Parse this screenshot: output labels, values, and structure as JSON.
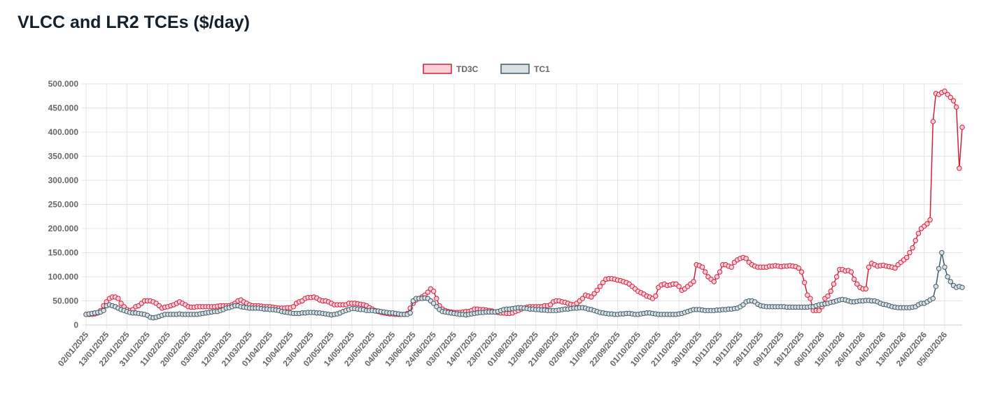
{
  "chart_data": {
    "type": "line",
    "title": "VLCC and LR2 TCEs ($/day)",
    "categories": [
      "02/01/2025",
      null,
      null,
      null,
      null,
      null,
      null,
      "13/01/2025",
      null,
      null,
      null,
      null,
      null,
      null,
      "22/01/2025",
      null,
      null,
      null,
      null,
      null,
      null,
      "31/01/2025",
      null,
      null,
      null,
      null,
      null,
      null,
      "11/02/2025",
      null,
      null,
      null,
      null,
      null,
      null,
      "20/02/2025",
      null,
      null,
      null,
      null,
      null,
      null,
      "03/03/2025",
      null,
      null,
      null,
      null,
      null,
      null,
      "12/03/2025",
      null,
      null,
      null,
      null,
      null,
      null,
      "21/03/2025",
      null,
      null,
      null,
      null,
      null,
      null,
      "01/04/2025",
      null,
      null,
      null,
      null,
      null,
      null,
      "10/04/2025",
      null,
      null,
      null,
      null,
      null,
      null,
      "23/04/2025",
      null,
      null,
      null,
      null,
      null,
      null,
      "02/05/2025",
      null,
      null,
      null,
      null,
      null,
      null,
      "14/05/2025",
      null,
      null,
      null,
      null,
      null,
      null,
      "23/05/2025",
      null,
      null,
      null,
      null,
      null,
      null,
      "04/06/2025",
      null,
      null,
      null,
      null,
      null,
      null,
      "13/06/2025",
      null,
      null,
      null,
      null,
      null,
      null,
      "24/06/2025",
      null,
      null,
      null,
      null,
      null,
      null,
      "03/07/2025",
      null,
      null,
      null,
      null,
      null,
      null,
      "14/07/2025",
      null,
      null,
      null,
      null,
      null,
      null,
      "23/07/2025",
      null,
      null,
      null,
      null,
      null,
      null,
      "01/08/2025",
      null,
      null,
      null,
      null,
      null,
      null,
      "12/08/2025",
      null,
      null,
      null,
      null,
      null,
      null,
      "21/08/2025",
      null,
      null,
      null,
      null,
      null,
      null,
      "02/09/2025",
      null,
      null,
      null,
      null,
      null,
      null,
      "11/09/2025",
      null,
      null,
      null,
      null,
      null,
      null,
      "22/09/2025",
      null,
      null,
      null,
      null,
      null,
      null,
      "01/10/2025",
      null,
      null,
      null,
      null,
      null,
      null,
      "10/10/2025",
      null,
      null,
      null,
      null,
      null,
      null,
      "21/10/2025",
      null,
      null,
      null,
      null,
      null,
      null,
      "30/10/2025",
      null,
      null,
      null,
      null,
      null,
      null,
      "10/11/2025",
      null,
      null,
      null,
      null,
      null,
      null,
      "19/11/2025",
      null,
      null,
      null,
      null,
      null,
      null,
      "28/11/2025",
      null,
      null,
      null,
      null,
      null,
      null,
      "09/12/2025",
      null,
      null,
      null,
      null,
      null,
      null,
      "18/12/2025",
      null,
      null,
      null,
      null,
      null,
      null,
      "06/01/2026",
      null,
      null,
      null,
      null,
      null,
      null,
      "15/01/2026",
      null,
      null,
      null,
      null,
      null,
      null,
      "26/01/2026",
      null,
      null,
      null,
      null,
      null,
      null,
      "04/02/2026",
      null,
      null,
      null,
      null,
      null,
      null,
      "13/02/2026",
      null,
      null,
      null,
      null,
      null,
      null,
      "24/02/2026",
      null,
      null,
      null,
      null,
      null,
      null,
      "05/03/2026",
      null,
      null,
      null,
      null,
      null,
      null
    ],
    "series": [
      {
        "name": "TD3C",
        "color": "#d21f3c",
        "fill_color": "#fbd0d8",
        "values": [
          22000,
          22000,
          22000,
          23000,
          25000,
          30000,
          40000,
          48000,
          55000,
          58000,
          58000,
          55000,
          45000,
          38000,
          32000,
          30000,
          32000,
          38000,
          40000,
          45000,
          50000,
          50000,
          50000,
          48000,
          45000,
          40000,
          35000,
          37000,
          38000,
          40000,
          42000,
          45000,
          48000,
          45000,
          42000,
          38000,
          37000,
          37000,
          38000,
          38000,
          38000,
          38000,
          38000,
          38000,
          38000,
          39000,
          40000,
          40000,
          40000,
          40000,
          42000,
          45000,
          50000,
          52000,
          48000,
          45000,
          42000,
          40000,
          40000,
          40000,
          39000,
          38000,
          38000,
          38000,
          37000,
          36000,
          35000,
          35000,
          35000,
          36000,
          36000,
          38000,
          45000,
          48000,
          50000,
          55000,
          57000,
          57000,
          58000,
          56000,
          52000,
          50000,
          50000,
          48000,
          45000,
          42000,
          42000,
          42000,
          42000,
          42000,
          45000,
          45000,
          45000,
          44000,
          43000,
          42000,
          40000,
          36000,
          33000,
          30000,
          28000,
          26000,
          25000,
          24000,
          23000,
          23000,
          22000,
          22000,
          22000,
          22000,
          24000,
          35000,
          45000,
          52000,
          55000,
          58000,
          62000,
          68000,
          75000,
          70000,
          55000,
          40000,
          33000,
          30000,
          28000,
          27000,
          26000,
          26000,
          26000,
          27000,
          28000,
          28000,
          30000,
          33000,
          33000,
          32000,
          32000,
          31000,
          30000,
          29000,
          27000,
          26000,
          25000,
          25000,
          24000,
          24000,
          25000,
          28000,
          30000,
          33000,
          35000,
          37000,
          38000,
          38000,
          38000,
          38000,
          38000,
          40000,
          40000,
          42000,
          48000,
          50000,
          50000,
          48000,
          47000,
          45000,
          43000,
          42000,
          45000,
          50000,
          55000,
          62000,
          60000,
          58000,
          65000,
          72000,
          80000,
          88000,
          95000,
          96000,
          96000,
          95000,
          93000,
          92000,
          90000,
          88000,
          85000,
          80000,
          75000,
          70000,
          67000,
          64000,
          60000,
          58000,
          55000,
          60000,
          78000,
          83000,
          85000,
          82000,
          83000,
          85000,
          85000,
          80000,
          72000,
          75000,
          80000,
          85000,
          90000,
          125000,
          123000,
          120000,
          110000,
          100000,
          95000,
          90000,
          100000,
          110000,
          125000,
          125000,
          122000,
          120000,
          130000,
          135000,
          138000,
          140000,
          138000,
          130000,
          125000,
          122000,
          120000,
          120000,
          120000,
          120000,
          122000,
          122000,
          123000,
          122000,
          121000,
          122000,
          122000,
          123000,
          122000,
          121000,
          118000,
          110000,
          88000,
          62000,
          55000,
          30000,
          30000,
          30000,
          38000,
          55000,
          60000,
          70000,
          85000,
          100000,
          115000,
          115000,
          112000,
          113000,
          110000,
          95000,
          85000,
          78000,
          75000,
          75000,
          120000,
          128000,
          125000,
          122000,
          123000,
          124000,
          122000,
          121000,
          120000,
          118000,
          125000,
          130000,
          135000,
          140000,
          150000,
          160000,
          175000,
          190000,
          200000,
          205000,
          210000,
          218000,
          422000,
          480000,
          478000,
          482000,
          485000,
          478000,
          472000,
          465000,
          452000,
          325000,
          410000
        ]
      },
      {
        "name": "TC1",
        "color": "#3e5a67",
        "fill_color": "#d9dfe2",
        "values": [
          22000,
          23000,
          24000,
          25000,
          26000,
          27000,
          30000,
          40000,
          42000,
          40000,
          38000,
          35000,
          32000,
          30000,
          28000,
          26000,
          25000,
          25000,
          24000,
          23000,
          22000,
          20000,
          16000,
          15000,
          16000,
          18000,
          20000,
          22000,
          22000,
          22000,
          22000,
          22000,
          23000,
          22000,
          22000,
          22000,
          22000,
          22000,
          22000,
          23000,
          24000,
          25000,
          26000,
          27000,
          28000,
          28000,
          30000,
          32000,
          35000,
          36000,
          38000,
          40000,
          40000,
          38000,
          37000,
          36000,
          35000,
          35000,
          35000,
          35000,
          34000,
          33000,
          33000,
          32000,
          32000,
          31000,
          30000,
          28000,
          27000,
          26000,
          25000,
          24000,
          24000,
          24000,
          25000,
          25000,
          26000,
          26000,
          26000,
          25000,
          25000,
          24000,
          23000,
          22000,
          21000,
          22000,
          23000,
          25000,
          28000,
          30000,
          32000,
          34000,
          34000,
          33000,
          32000,
          32000,
          30000,
          30000,
          30000,
          29000,
          29000,
          28000,
          27000,
          26000,
          25000,
          25000,
          24000,
          23000,
          22000,
          22000,
          22000,
          25000,
          50000,
          55000,
          55000,
          55000,
          56000,
          55000,
          50000,
          45000,
          38000,
          32000,
          28000,
          27000,
          26000,
          25000,
          24000,
          23000,
          22000,
          22000,
          21000,
          22000,
          23000,
          24000,
          25000,
          26000,
          26000,
          27000,
          27000,
          27000,
          27000,
          28000,
          30000,
          32000,
          33000,
          33000,
          34000,
          35000,
          36000,
          36000,
          35000,
          34000,
          33000,
          33000,
          32000,
          32000,
          31000,
          31000,
          30000,
          30000,
          30000,
          30000,
          31000,
          32000,
          33000,
          33000,
          34000,
          35000,
          35000,
          36000,
          36000,
          35000,
          33000,
          32000,
          30000,
          28000,
          26000,
          25000,
          24000,
          23000,
          23000,
          22000,
          22000,
          23000,
          23000,
          24000,
          24000,
          23000,
          22000,
          22000,
          23000,
          24000,
          25000,
          25000,
          24000,
          23000,
          22000,
          22000,
          22000,
          22000,
          22000,
          22000,
          22000,
          23000,
          24000,
          26000,
          28000,
          30000,
          32000,
          32000,
          32000,
          31000,
          30000,
          30000,
          30000,
          30000,
          31000,
          31000,
          32000,
          32000,
          33000,
          33000,
          34000,
          35000,
          38000,
          42000,
          48000,
          50000,
          50000,
          48000,
          43000,
          40000,
          39000,
          38000,
          38000,
          38000,
          38000,
          38000,
          38000,
          38000,
          37000,
          37000,
          37000,
          37000,
          37000,
          37000,
          37000,
          37000,
          38000,
          38000,
          40000,
          42000,
          43000,
          44000,
          45000,
          47000,
          48000,
          50000,
          52000,
          53000,
          52000,
          50000,
          48000,
          48000,
          49000,
          50000,
          50000,
          51000,
          51000,
          50000,
          50000,
          48000,
          45000,
          43000,
          42000,
          40000,
          38000,
          37000,
          36000,
          36000,
          36000,
          36000,
          36000,
          37000,
          38000,
          42000,
          45000,
          45000,
          48000,
          52000,
          55000,
          80000,
          117000,
          150000,
          120000,
          100000,
          90000,
          82000,
          78000,
          80000,
          78000
        ]
      }
    ],
    "ylim": [
      0,
      500000
    ],
    "yticks": [
      0,
      {
        "value": 50000,
        "label": "50.000"
      },
      {
        "value": 100000,
        "label": "100.000"
      },
      {
        "value": 150000,
        "label": "150.000"
      },
      {
        "value": 200000,
        "label": "200.000"
      },
      {
        "value": 250000,
        "label": "250.000"
      },
      {
        "value": 300000,
        "label": "300.000"
      },
      {
        "value": 350000,
        "label": "350.000"
      },
      {
        "value": 400000,
        "label": "400.000"
      },
      {
        "value": 450000,
        "label": "450.000"
      },
      {
        "value": 500000,
        "label": "500.000"
      }
    ],
    "grid": true,
    "legend": "top"
  }
}
